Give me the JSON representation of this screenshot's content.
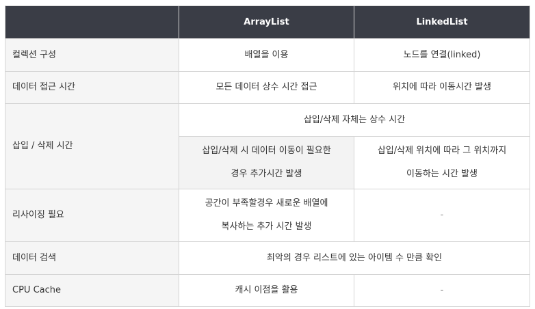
{
  "table": {
    "headers": [
      "",
      "ArrayList",
      "LinkedList"
    ],
    "rows": {
      "composition": {
        "label": "컬렉션 구성",
        "arraylist": "배열을 이용",
        "linkedlist": "노드를 연결(linked)"
      },
      "access": {
        "label": "데이터 접근 시간",
        "arraylist": "모든 데이터 상수 시간 접근",
        "linkedlist": "위치에 따라 이동시간 발생"
      },
      "insert_delete": {
        "label": "삽입 / 삭제 시간",
        "shared": "삽입/삭제 자체는 상수 시간",
        "arraylist_line1": "삽입/삭제 시 데이터 이동이 필요한",
        "arraylist_line2": "경우 추가시간 발생",
        "linkedlist_line1": "삽입/삭제 위치에 따라 그 위치까지",
        "linkedlist_line2": "이동하는 시간 발생"
      },
      "resizing": {
        "label": "리사이징 필요",
        "arraylist_line1": "공간이 부족할경우 새로운 배열에",
        "arraylist_line2": "복사하는 추가 시간 발생",
        "linkedlist": "-"
      },
      "search": {
        "label": "데이터 검색",
        "shared": "최악의 경우 리스트에 있는 아이템 수 만큼 확인"
      },
      "cpu_cache": {
        "label": "CPU Cache",
        "arraylist": "캐시 이점을 활용",
        "linkedlist": "-"
      }
    }
  }
}
